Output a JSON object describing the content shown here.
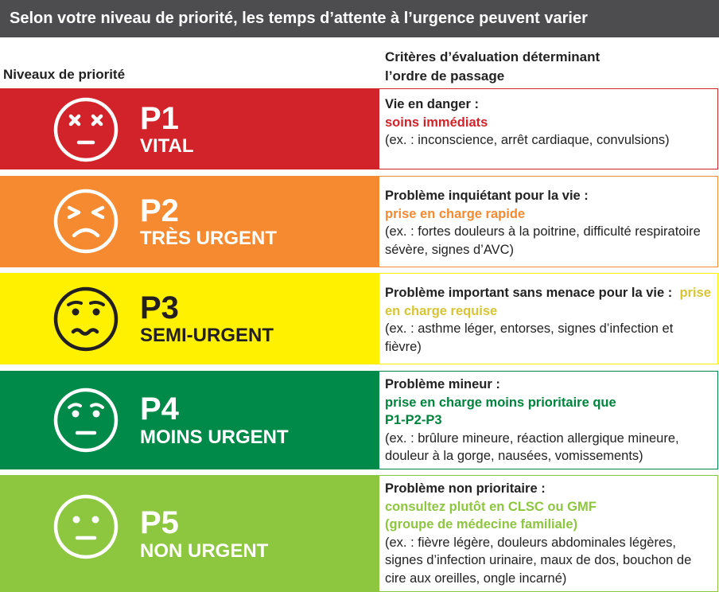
{
  "banner": "Selon votre niveau de priorité, les temps d’attente à l’urgence peuvent varier",
  "headers": {
    "left": "Niveaux de priorité",
    "right_line1": "Critères d’évaluation déterminant",
    "right_line2": "l’ordre de passage"
  },
  "colors": {
    "p1": "#d2232a",
    "p2": "#f58a31",
    "p3": "#fff100",
    "p4": "#008a4a",
    "p5": "#8dc63f",
    "p3_accent": "#d7c533",
    "p4_accent": "#00843d",
    "p5_accent": "#8dc63f"
  },
  "levels": [
    {
      "code": "P1",
      "label": "VITAL",
      "face_icon": "x-eyes-face-icon",
      "title": "Vie en danger :",
      "subtitle": "soins immédiats",
      "examples": "(ex. : inconscience, arrêt cardiaque, convulsions)"
    },
    {
      "code": "P2",
      "label": "TRÈS URGENT",
      "face_icon": "squinting-frown-face-icon",
      "title": "Problème inquiétant pour la vie :",
      "subtitle": "prise en charge rapide",
      "examples": "(ex. : fortes douleurs à la poitrine, difficulté respiratoire sévère, signes d’AVC)"
    },
    {
      "code": "P3",
      "label": "SEMI-URGENT",
      "face_icon": "worried-wavy-face-icon",
      "title": "Problème important sans menace pour la vie :",
      "subtitle": "prise en charge requise",
      "examples": "(ex. : asthme léger, entorses, signes d’infection et fièvre)"
    },
    {
      "code": "P4",
      "label": "MOINS URGENT",
      "face_icon": "concerned-face-icon",
      "title": "Problème mineur :",
      "subtitle": "prise en charge moins prioritaire que P1-P2-P3",
      "examples": "(ex. : brûlure mineure, réaction allergique mineure, douleur à la gorge, nausées, vomissements)"
    },
    {
      "code": "P5",
      "label": "NON URGENT",
      "face_icon": "neutral-face-icon",
      "title": "Problème non prioritaire :",
      "subtitle": "consultez plutôt en CLSC ou GMF (groupe de médecine familiale)",
      "examples": "(ex. : fièvre légère, douleurs abdominales légères, signes d’infection urinaire, maux de dos, bouchon de cire aux oreilles, ongle incarné)"
    }
  ]
}
